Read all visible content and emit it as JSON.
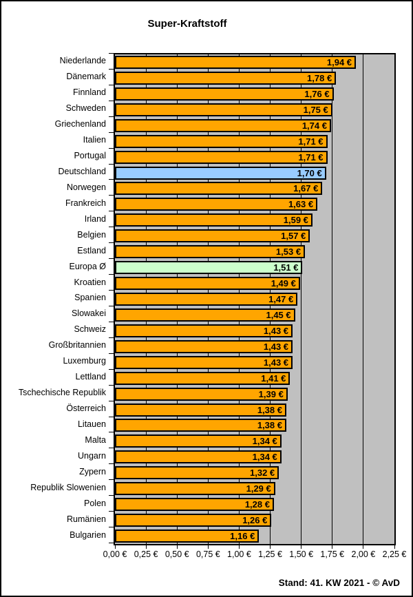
{
  "title": "Super-Kraftstoff",
  "footer": {
    "stand_label": "Stand: 41. KW 2021 - © AvD"
  },
  "chart_data": {
    "type": "bar",
    "orientation": "horizontal",
    "title": "Super-Kraftstoff",
    "unit": "€",
    "categories": [
      "Niederlande",
      "Dänemark",
      "Finnland",
      "Schweden",
      "Griechenland",
      "Italien",
      "Portugal",
      "Deutschland",
      "Norwegen",
      "Frankreich",
      "Irland",
      "Belgien",
      "Estland",
      "Europa Ø",
      "Kroatien",
      "Spanien",
      "Slowakei",
      "Schweiz",
      "Großbritannien",
      "Luxemburg",
      "Lettland",
      "Tschechische Republik",
      "Österreich",
      "Litauen",
      "Malta",
      "Ungarn",
      "Zypern",
      "Republik Slowenien",
      "Polen",
      "Rumänien",
      "Bulgarien"
    ],
    "values": [
      1.94,
      1.78,
      1.76,
      1.75,
      1.74,
      1.71,
      1.71,
      1.7,
      1.67,
      1.63,
      1.59,
      1.57,
      1.53,
      1.51,
      1.49,
      1.47,
      1.45,
      1.43,
      1.43,
      1.43,
      1.41,
      1.39,
      1.38,
      1.38,
      1.34,
      1.34,
      1.32,
      1.29,
      1.28,
      1.26,
      1.16
    ],
    "value_labels": [
      "1,94 €",
      "1,78 €",
      "1,76 €",
      "1,75 €",
      "1,74 €",
      "1,71 €",
      "1,71 €",
      "1,70 €",
      "1,67 €",
      "1,63 €",
      "1,59 €",
      "1,57 €",
      "1,53 €",
      "1,51 €",
      "1,49 €",
      "1,47 €",
      "1,45 €",
      "1,43 €",
      "1,43 €",
      "1,43 €",
      "1,41 €",
      "1,39 €",
      "1,38 €",
      "1,38 €",
      "1,34 €",
      "1,34 €",
      "1,32 €",
      "1,29 €",
      "1,28 €",
      "1,26 €",
      "1,16 €"
    ],
    "xlim": [
      0,
      2.25
    ],
    "x_tick_step": 0.25,
    "x_tick_labels": [
      "0,00 €",
      "0,25 €",
      "0,50 €",
      "0,75 €",
      "1,00 €",
      "1,25 €",
      "1,50 €",
      "1,75 €",
      "2,00 €",
      "2,25 €"
    ],
    "grid": "vertical",
    "legend": "none",
    "colors": {
      "bar_default": "#FFA500",
      "bar_deutschland": "#99CCFF",
      "bar_europa_avg": "#CCFFCC",
      "plot_background": "#C0C0C0",
      "border": "#000000"
    },
    "highlights": [
      {
        "index": 7,
        "category": "Deutschland",
        "color_key": "bar_deutschland"
      },
      {
        "index": 13,
        "category": "Europa Ø",
        "color_key": "bar_europa_avg"
      }
    ]
  }
}
